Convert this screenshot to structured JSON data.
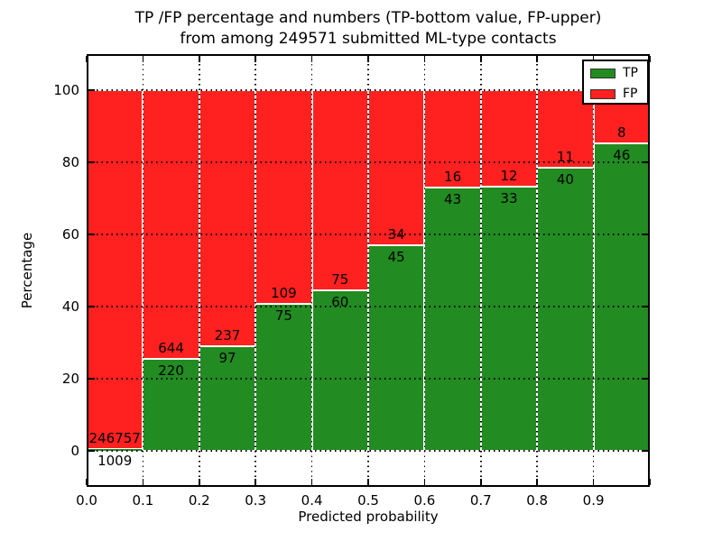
{
  "figure": {
    "title_line1": "TP /FP percentage and numbers (TP-bottom value, FP-upper)",
    "title_line2": "from among 249571 submitted ML-type contacts",
    "xlabel": "Predicted probability",
    "ylabel": "Percentage"
  },
  "colors": {
    "tp": "#228b22",
    "fp": "#ff2020",
    "grid": "#000000",
    "background": "#ffffff"
  },
  "chart_data": {
    "type": "bar",
    "subtype": "stacked-percentage-bars",
    "title": "TP /FP percentage and numbers (TP-bottom value, FP-upper)\nfrom among 249571 submitted ML-type contacts",
    "xlabel": "Predicted probability",
    "ylabel": "Percentage",
    "total_contacts": 249571,
    "grid": true,
    "xlim": [
      0.0,
      1.0
    ],
    "ylim": [
      -10,
      110
    ],
    "x_ticks": [
      0.0,
      0.1,
      0.2,
      0.3,
      0.4,
      0.5,
      0.6,
      0.7,
      0.8,
      0.9
    ],
    "x_tick_labels": [
      "0.0",
      "0.1",
      "0.2",
      "0.3",
      "0.4",
      "0.5",
      "0.6",
      "0.7",
      "0.8",
      "0.9"
    ],
    "y_ticks": [
      0,
      20,
      40,
      60,
      80,
      100
    ],
    "y_tick_labels": [
      "0",
      "20",
      "40",
      "60",
      "80",
      "100"
    ],
    "bin_width": 0.1,
    "categories": [
      "0.0-0.1",
      "0.1-0.2",
      "0.2-0.3",
      "0.3-0.4",
      "0.4-0.5",
      "0.5-0.6",
      "0.6-0.7",
      "0.7-0.8",
      "0.8-0.9",
      "0.9-1.0"
    ],
    "series": [
      {
        "name": "TP",
        "color": "#228b22",
        "counts": [
          1009,
          220,
          97,
          75,
          60,
          45,
          43,
          33,
          40,
          46
        ]
      },
      {
        "name": "FP",
        "color": "#ff2020",
        "counts": [
          246757,
          644,
          237,
          109,
          75,
          34,
          16,
          12,
          11,
          8
        ]
      }
    ],
    "tp_percent": [
      0.41,
      25.46,
      29.04,
      40.76,
      44.44,
      56.96,
      72.88,
      73.33,
      78.43,
      85.19
    ],
    "legend": {
      "position": "upper right",
      "entries": [
        {
          "label": "TP",
          "color": "#228b22"
        },
        {
          "label": "FP",
          "color": "#ff2020"
        }
      ]
    }
  }
}
